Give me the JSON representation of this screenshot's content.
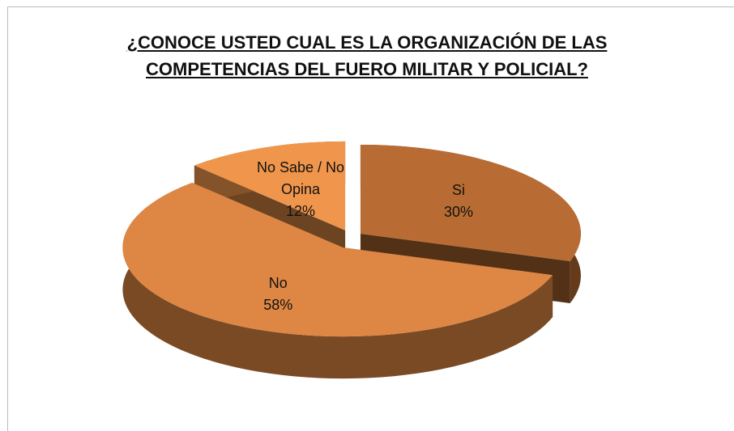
{
  "chart_data": {
    "type": "pie",
    "title": "¿CONOCE USTED CUAL ES LA ORGANIZACIÓN DE LAS COMPETENCIAS DEL FUERO MILITAR Y POLICIAL?",
    "categories": [
      "Si",
      "No",
      "No Sabe / No Opina"
    ],
    "values": [
      30,
      58,
      12
    ],
    "value_labels": [
      "30%",
      "58%",
      "12%"
    ],
    "colors": [
      "#b86c33",
      "#de8744",
      "#f0964c"
    ]
  }
}
